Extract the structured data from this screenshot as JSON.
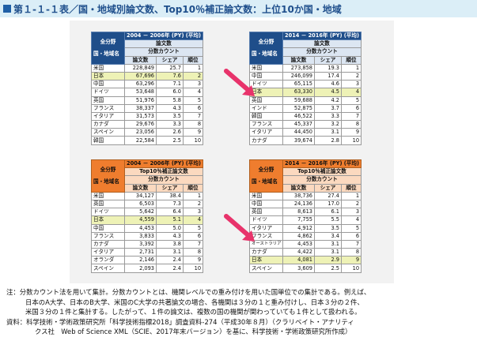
{
  "title": "第１-１-１表／国・地域別論文数、Top10％補正論文数：上位10か国・地域",
  "colors": {
    "blue_header": "#1f4e8a",
    "orange_header": "#ef7d2e",
    "highlight": "#eef2b6",
    "arrow": "#e8336b"
  },
  "tables": [
    {
      "id": "tl",
      "period": "2004 － 2006年 (PY) (平均)",
      "metric": "論文数",
      "corner_top": "全分野",
      "corner_bottom": "国・地域名",
      "method": "分数カウント",
      "cols": [
        "論文数",
        "シェア",
        "順位"
      ],
      "rows": [
        [
          "米国",
          "228,849",
          "25.7",
          "1"
        ],
        [
          "日本",
          "67,696",
          "7.6",
          "2"
        ],
        [
          "中国",
          "63,296",
          "7.1",
          "3"
        ],
        [
          "ドイツ",
          "53,648",
          "6.0",
          "4"
        ],
        [
          "英国",
          "51,976",
          "5.8",
          "5"
        ],
        [
          "フランス",
          "38,337",
          "4.3",
          "6"
        ],
        [
          "イタリア",
          "31,573",
          "3.5",
          "7"
        ],
        [
          "カナダ",
          "29,676",
          "3.3",
          "8"
        ],
        [
          "スペイン",
          "23,056",
          "2.6",
          "9"
        ],
        [
          "韓国",
          "22,584",
          "2.5",
          "10"
        ]
      ],
      "highlight_row": 1
    },
    {
      "id": "tr",
      "period": "2014 － 2016年 (PY) (平均)",
      "metric": "論文数",
      "corner_top": "全分野",
      "corner_bottom": "国・地域名",
      "method": "分数カウント",
      "cols": [
        "論文数",
        "シェア",
        "順位"
      ],
      "rows": [
        [
          "米国",
          "273,858",
          "19.3",
          "1"
        ],
        [
          "中国",
          "246,099",
          "17.4",
          "2"
        ],
        [
          "ドイツ",
          "65,115",
          "4.6",
          "3"
        ],
        [
          "日本",
          "63,330",
          "4.5",
          "4"
        ],
        [
          "英国",
          "59,688",
          "4.2",
          "5"
        ],
        [
          "インド",
          "52,875",
          "3.7",
          "6"
        ],
        [
          "韓国",
          "46,522",
          "3.3",
          "7"
        ],
        [
          "フランス",
          "45,337",
          "3.2",
          "8"
        ],
        [
          "イタリア",
          "44,450",
          "3.1",
          "9"
        ],
        [
          "カナダ",
          "39,674",
          "2.8",
          "10"
        ]
      ],
      "highlight_row": 3
    },
    {
      "id": "bl",
      "period": "2004 － 2006年 (PY) (平均)",
      "metric": "Top10％補正論文数",
      "corner_top": "全分野",
      "corner_bottom": "国・地域名",
      "method": "分数カウント",
      "cols": [
        "論文数",
        "シェア",
        "順位"
      ],
      "rows": [
        [
          "米国",
          "34,127",
          "38.4",
          "1"
        ],
        [
          "英国",
          "6,503",
          "7.3",
          "2"
        ],
        [
          "ドイツ",
          "5,642",
          "6.4",
          "3"
        ],
        [
          "日本",
          "4,559",
          "5.1",
          "4"
        ],
        [
          "中国",
          "4,453",
          "5.0",
          "5"
        ],
        [
          "フランス",
          "3,833",
          "4.3",
          "6"
        ],
        [
          "カナダ",
          "3,392",
          "3.8",
          "7"
        ],
        [
          "イタリア",
          "2,731",
          "3.1",
          "8"
        ],
        [
          "オランダ",
          "2,146",
          "2.4",
          "9"
        ],
        [
          "スペイン",
          "2,093",
          "2.4",
          "10"
        ]
      ],
      "highlight_row": 3
    },
    {
      "id": "br",
      "period": "2014 － 2016年 (PY) (平均)",
      "metric": "Top10％補正論文数",
      "corner_top": "全分野",
      "corner_bottom": "国・地域名",
      "method": "分数カウント",
      "cols": [
        "論文数",
        "シェア",
        "順位"
      ],
      "rows": [
        [
          "米国",
          "38,736",
          "27.4",
          "1"
        ],
        [
          "中国",
          "24,136",
          "17.0",
          "2"
        ],
        [
          "英国",
          "8,613",
          "6.1",
          "3"
        ],
        [
          "ドイツ",
          "7,755",
          "5.5",
          "4"
        ],
        [
          "イタリア",
          "4,912",
          "3.5",
          "5"
        ],
        [
          "フランス",
          "4,862",
          "3.4",
          "6"
        ],
        [
          "オーストラリア",
          "4,453",
          "3.1",
          "7"
        ],
        [
          "カナダ",
          "4,422",
          "3.1",
          "8"
        ],
        [
          "日本",
          "4,081",
          "2.9",
          "9"
        ],
        [
          "スペイン",
          "3,609",
          "2.5",
          "10"
        ]
      ],
      "highlight_row": 8
    }
  ],
  "notes": {
    "line1": "注：分数カウント法を用いて集計。分数カウントとは、機関レベルでの重み付けを用いた国単位での集計である。例えば、",
    "line2": "日本のA大学、日本のB大学、米国のC大学の共著論文の場合、各機関は３分の１と重み付けし、日本３分の２件、",
    "line3": "米国３分の１件と集計する。したがって、１件の論文は、複数の国の機関が関わっていても１件として扱われる。",
    "line4": "資料：科学技術・学術政策研究所「科学技術指標2018」調査資料-274（平成30年８月）（クラリベイト・アナリティ",
    "line5": "クス社　Web of Science XML（SCIE、2017年末バージョン）を基に、科学技術・学術政策研究所作成）"
  }
}
